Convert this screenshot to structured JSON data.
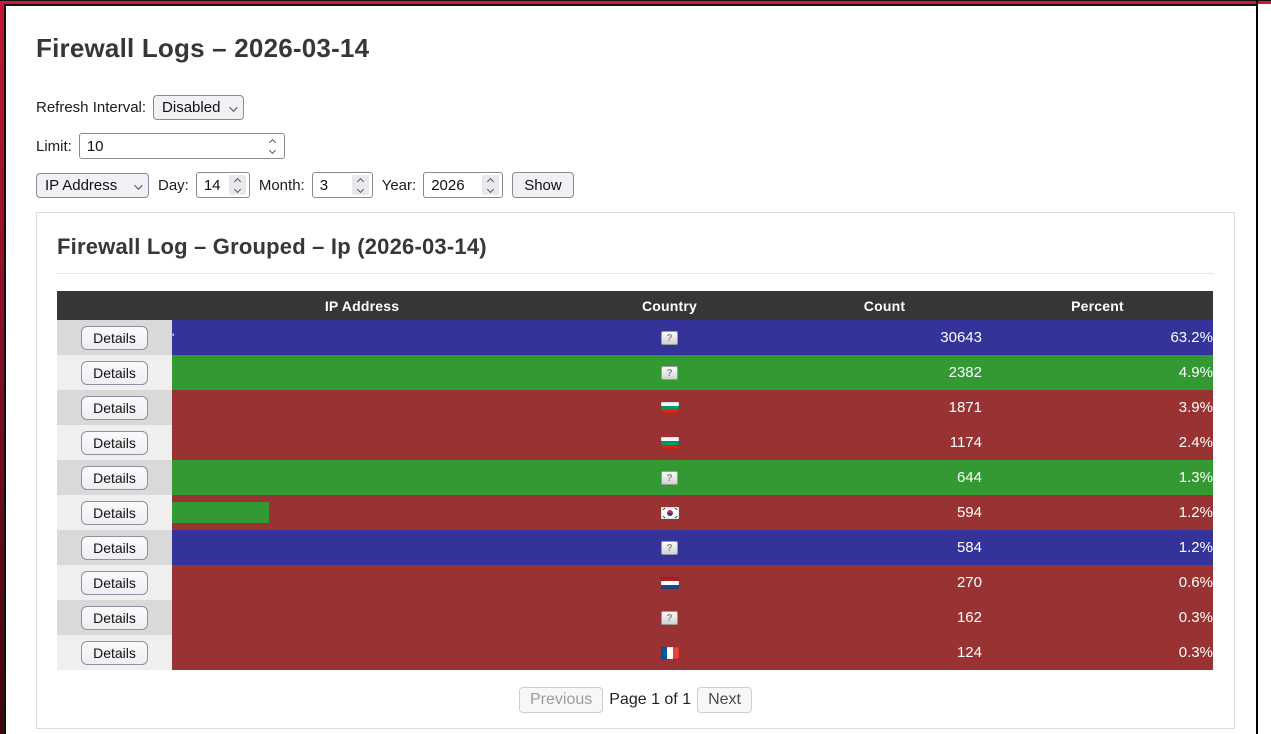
{
  "page": {
    "title": "Firewall Logs – 2026-03-14"
  },
  "controls": {
    "refresh_label": "Refresh Interval:",
    "refresh_value": "Disabled",
    "limit_label": "Limit:",
    "limit_value": "10",
    "group_by_value": "IP Address",
    "day_label": "Day:",
    "day_value": "14",
    "month_label": "Month:",
    "month_value": "3",
    "year_label": "Year:",
    "year_value": "2026",
    "show_label": "Show"
  },
  "card": {
    "title": "Firewall Log – Grouped – Ip (2026-03-14)"
  },
  "table": {
    "headers": {
      "details": "",
      "ip": "IP Address",
      "country": "Country",
      "count": "Count",
      "percent": "Percent"
    },
    "details_label": "Details",
    "row_colors": {
      "blue": "#333399",
      "green": "#339933",
      "red": "#993333"
    },
    "rows": [
      {
        "ip": "'",
        "country": "unknown",
        "count": "30643",
        "percent": "63.2%",
        "color": "blue",
        "green_bar": false
      },
      {
        "ip": "",
        "country": "unknown",
        "count": "2382",
        "percent": "4.9%",
        "color": "green",
        "green_bar": false
      },
      {
        "ip": "",
        "country": "bg",
        "count": "1871",
        "percent": "3.9%",
        "color": "red",
        "green_bar": false
      },
      {
        "ip": "",
        "country": "bg",
        "count": "1174",
        "percent": "2.4%",
        "color": "red",
        "green_bar": false
      },
      {
        "ip": "",
        "country": "unknown",
        "count": "644",
        "percent": "1.3%",
        "color": "green",
        "green_bar": false
      },
      {
        "ip": "",
        "country": "kr",
        "count": "594",
        "percent": "1.2%",
        "color": "red",
        "green_bar": true
      },
      {
        "ip": "",
        "country": "unknown",
        "count": "584",
        "percent": "1.2%",
        "color": "blue",
        "green_bar": false
      },
      {
        "ip": "",
        "country": "nl",
        "count": "270",
        "percent": "0.6%",
        "color": "red",
        "green_bar": false
      },
      {
        "ip": "",
        "country": "unknown",
        "count": "162",
        "percent": "0.3%",
        "color": "red",
        "green_bar": false
      },
      {
        "ip": "",
        "country": "fr",
        "count": "124",
        "percent": "0.3%",
        "color": "red",
        "green_bar": false
      }
    ]
  },
  "pagination": {
    "previous": "Previous",
    "status": "Page 1 of 1",
    "next": "Next"
  }
}
